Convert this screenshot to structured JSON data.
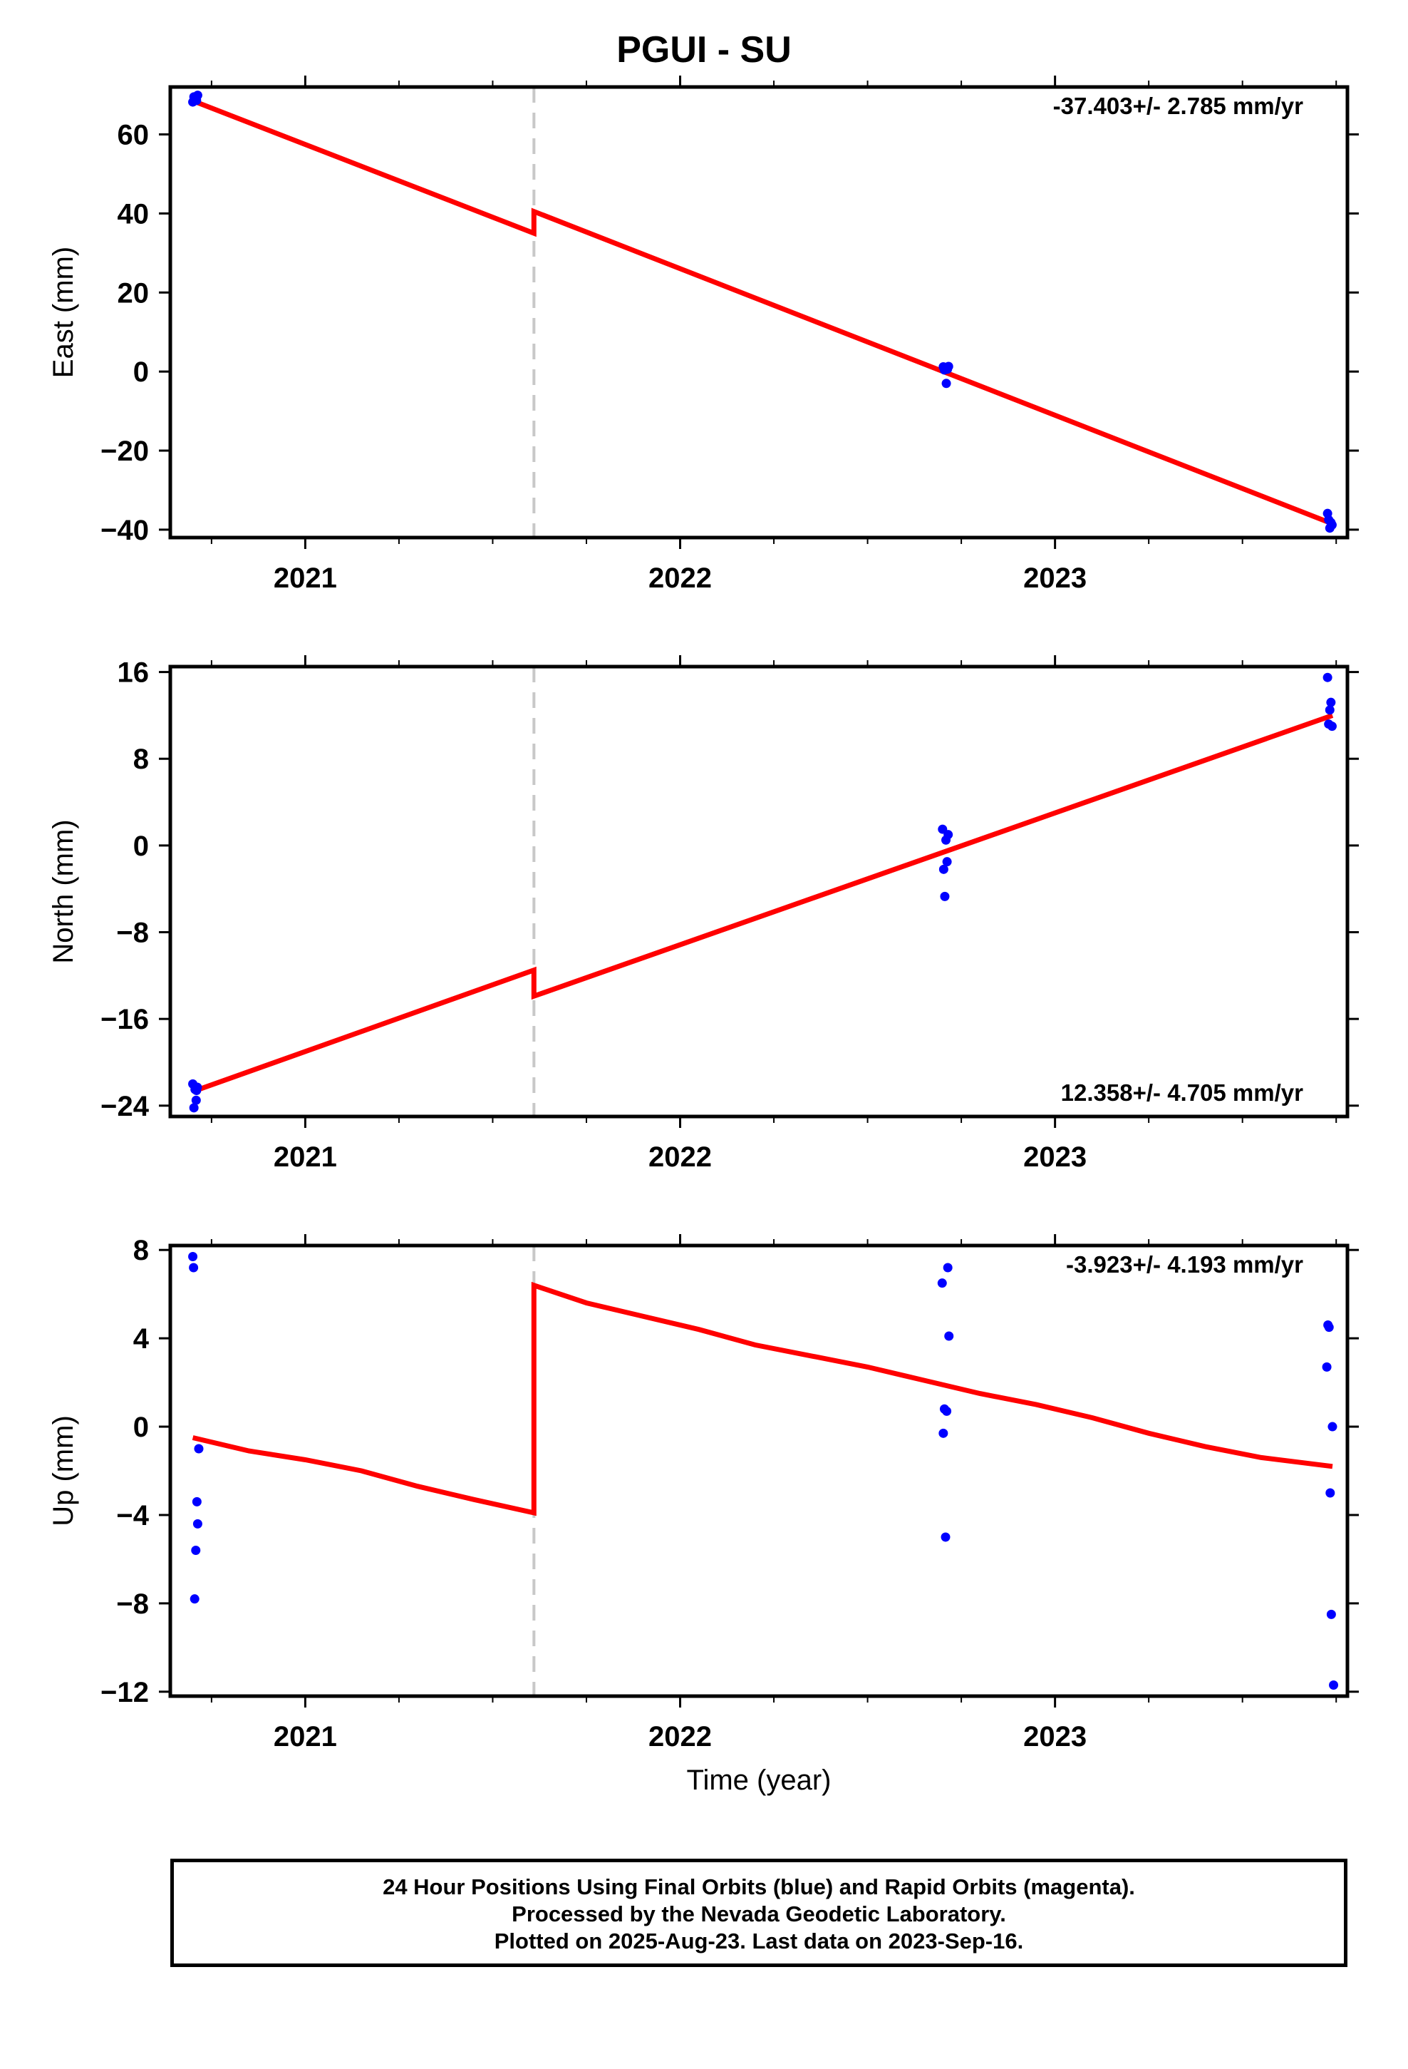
{
  "title": "PGUI - SU",
  "footer": {
    "line1": "24 Hour Positions Using Final Orbits (blue) and Rapid Orbits (magenta).",
    "line2": "Processed by the Nevada Geodetic Laboratory.",
    "line3": "Plotted on 2025-Aug-23. Last data on 2023-Sep-16."
  },
  "colors": {
    "data_points": "#0000ff",
    "fit_line": "#ff0000",
    "event_line": "#c8c8c8",
    "axes": "#000000"
  },
  "chart_data": [
    {
      "type": "scatter",
      "ylabel": "East (mm)",
      "xlabel": "",
      "xlim": [
        2020.64,
        2023.78
      ],
      "ylim": [
        -42,
        72
      ],
      "xticks": [
        2021,
        2022,
        2023
      ],
      "yticks": [
        -40,
        -20,
        0,
        20,
        40,
        60
      ],
      "ytick_labels": [
        "−40",
        "−20",
        "0",
        "20",
        "40",
        "60"
      ],
      "annotation": "-37.403+/- 2.785 mm/yr",
      "annotation_position": "top-right",
      "event_x": 2021.61,
      "fit": {
        "x": [
          2020.7,
          2021.61,
          2021.61,
          2023.74
        ],
        "y": [
          68.5,
          35.0,
          40.5,
          -38.5
        ]
      },
      "points": {
        "x": [
          2020.7,
          2020.703,
          2020.706,
          2020.71,
          2020.713,
          2022.702,
          2022.705,
          2022.708,
          2022.71,
          2022.713,
          2022.716,
          2023.727,
          2023.73,
          2023.733,
          2023.736,
          2023.739
        ],
        "y": [
          68.2,
          69.5,
          68.8,
          68.6,
          69.9,
          1.2,
          0.4,
          1.0,
          -3.0,
          0.6,
          1.3,
          -35.9,
          -37.5,
          -39.6,
          -38.2,
          -38.8
        ]
      }
    },
    {
      "type": "scatter",
      "ylabel": "North (mm)",
      "xlabel": "",
      "xlim": [
        2020.64,
        2023.78
      ],
      "ylim": [
        -25,
        16.5
      ],
      "xticks": [
        2021,
        2022,
        2023
      ],
      "yticks": [
        -24,
        -16,
        -8,
        0,
        8,
        16
      ],
      "ytick_labels": [
        "−24",
        "−16",
        "−8",
        "0",
        "8",
        "16"
      ],
      "annotation": "12.358+/- 4.705 mm/yr",
      "annotation_position": "bottom-right",
      "event_x": 2021.61,
      "fit": {
        "x": [
          2020.7,
          2021.61,
          2021.61,
          2023.74
        ],
        "y": [
          -22.7,
          -11.5,
          -13.9,
          12.0
        ]
      },
      "points": {
        "x": [
          2020.7,
          2020.703,
          2020.706,
          2020.709,
          2020.712,
          2020.71,
          2022.7,
          2022.703,
          2022.706,
          2022.709,
          2022.712,
          2022.715,
          2023.727,
          2023.73,
          2023.733,
          2023.736,
          2023.739
        ],
        "y": [
          -22.0,
          -24.2,
          -22.5,
          -23.5,
          -22.3,
          -22.6,
          1.5,
          -2.2,
          -4.7,
          0.5,
          -1.5,
          1.0,
          15.5,
          11.2,
          12.5,
          13.2,
          11.0
        ]
      }
    },
    {
      "type": "scatter",
      "ylabel": "Up (mm)",
      "xlabel": "Time (year)",
      "xlim": [
        2020.64,
        2023.78
      ],
      "ylim": [
        -12.2,
        8.2
      ],
      "xticks": [
        2021,
        2022,
        2023
      ],
      "yticks": [
        -12,
        -8,
        -4,
        0,
        4,
        8
      ],
      "ytick_labels": [
        "−12",
        "−8",
        "−4",
        "0",
        "4",
        "8"
      ],
      "annotation": "-3.923+/- 4.193 mm/yr",
      "annotation_position": "top-right",
      "event_x": 2021.61,
      "fit": {
        "x": [
          2020.7,
          2020.85,
          2021.0,
          2021.15,
          2021.3,
          2021.45,
          2021.61,
          2021.61,
          2021.75,
          2021.9,
          2022.05,
          2022.2,
          2022.35,
          2022.5,
          2022.65,
          2022.8,
          2022.95,
          2023.1,
          2023.25,
          2023.4,
          2023.55,
          2023.74
        ],
        "y": [
          -0.5,
          -1.1,
          -1.5,
          -2.0,
          -2.7,
          -3.3,
          -3.9,
          6.4,
          5.6,
          5.0,
          4.4,
          3.7,
          3.2,
          2.7,
          2.1,
          1.5,
          1.0,
          0.4,
          -0.3,
          -0.9,
          -1.4,
          -1.8
        ]
      },
      "points": {
        "x": [
          2020.7,
          2020.702,
          2020.705,
          2020.708,
          2020.711,
          2020.713,
          2020.716,
          2022.699,
          2022.702,
          2022.705,
          2022.708,
          2022.711,
          2022.714,
          2022.717,
          2023.725,
          2023.728,
          2023.731,
          2023.734,
          2023.737,
          2023.74,
          2023.743
        ],
        "y": [
          7.7,
          7.2,
          -7.8,
          -5.6,
          -3.4,
          -4.4,
          -1.0,
          6.5,
          -0.3,
          0.8,
          -5.0,
          0.7,
          7.2,
          4.1,
          2.7,
          4.6,
          4.5,
          -3.0,
          -8.5,
          0.0,
          -11.7
        ]
      }
    }
  ]
}
